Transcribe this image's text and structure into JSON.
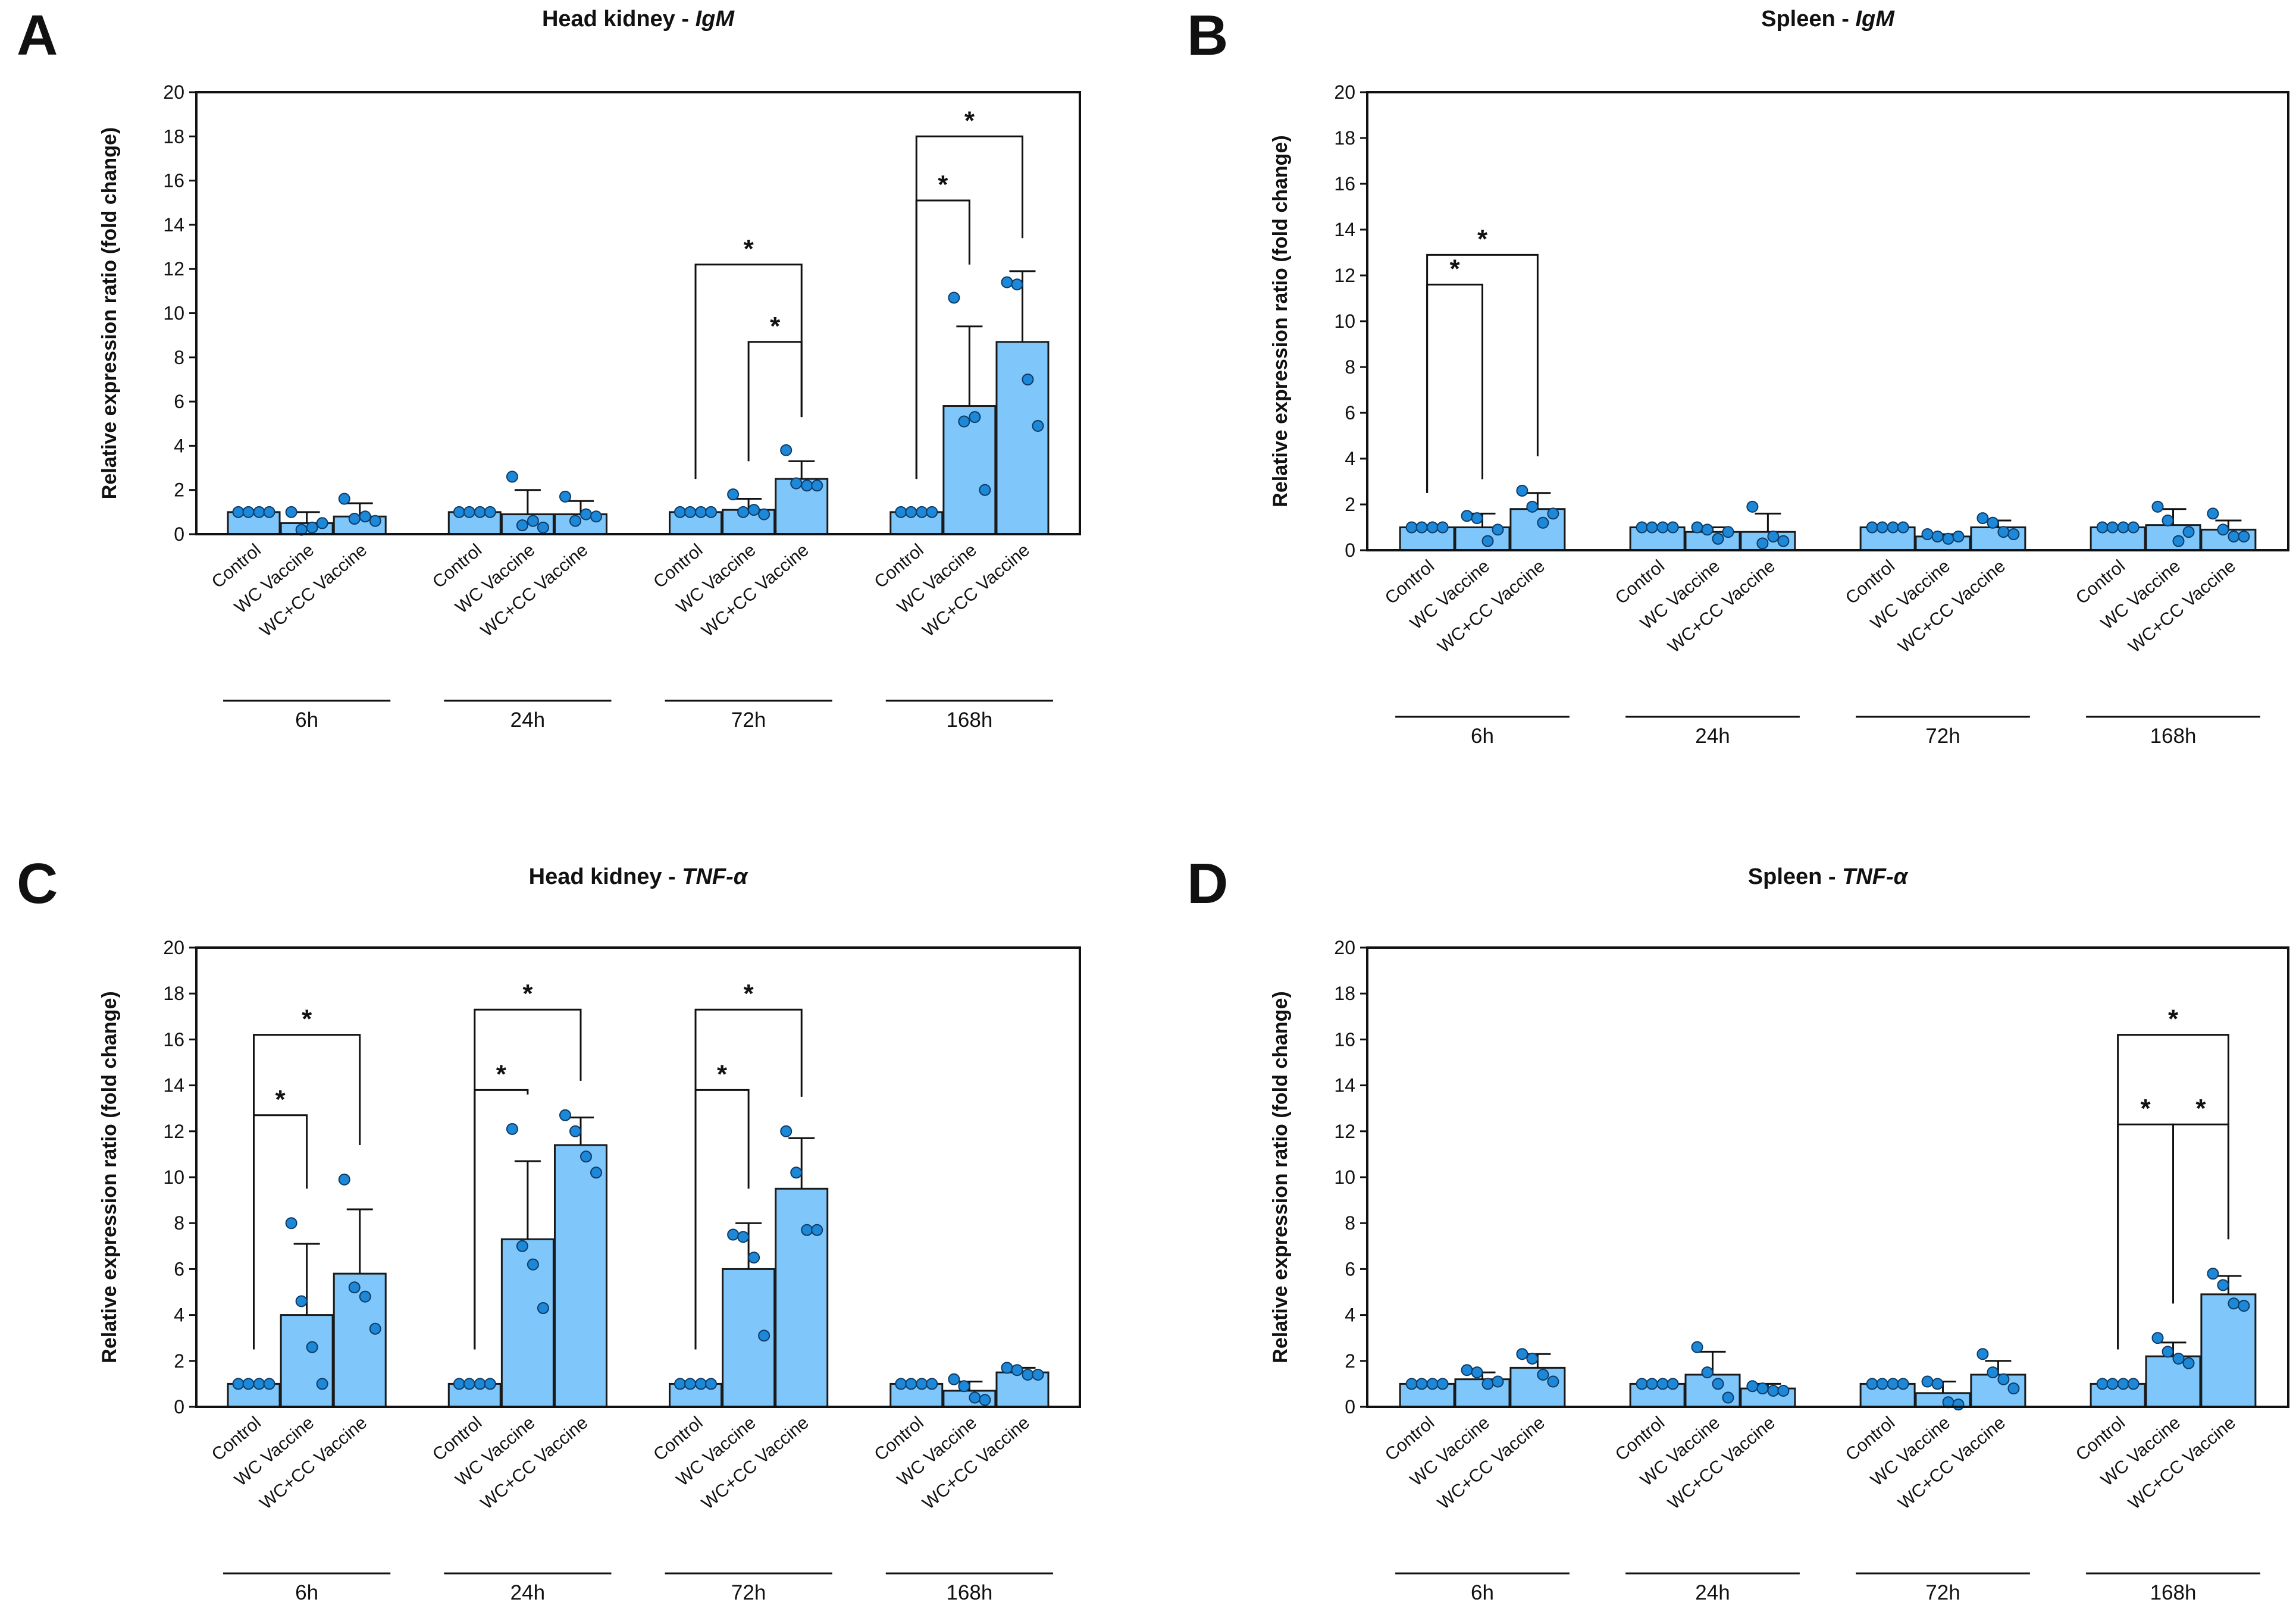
{
  "figure": {
    "bar_color": "#7FC7FA",
    "bar_edge": "#1A1A1A",
    "dot_color": "#1E88D8"
  },
  "chart_data": [
    {
      "panel": "A",
      "type": "bar",
      "title_prefix": "Head kidney - ",
      "title_gene": "IgM",
      "ylabel": "Relative expression ratio (fold change)",
      "ylim": [
        0,
        20
      ],
      "yticks": [
        0,
        2,
        4,
        6,
        8,
        10,
        12,
        14,
        16,
        18,
        20
      ],
      "categories": [
        "Control",
        "WC Vaccine",
        "WC+CC Vaccine"
      ],
      "groups": [
        {
          "label": "6h",
          "bars": [
            {
              "mean": 1.0,
              "sd": 0,
              "points": [
                1,
                1,
                1,
                1
              ]
            },
            {
              "mean": 0.5,
              "sd": 0.5,
              "points": [
                1.0,
                0.2,
                0.3,
                0.5
              ]
            },
            {
              "mean": 0.8,
              "sd": 0.6,
              "points": [
                1.6,
                0.7,
                0.8,
                0.6
              ]
            }
          ]
        },
        {
          "label": "24h",
          "bars": [
            {
              "mean": 1.0,
              "sd": 0,
              "points": [
                1,
                1,
                1,
                1
              ]
            },
            {
              "mean": 0.9,
              "sd": 1.1,
              "points": [
                2.6,
                0.4,
                0.6,
                0.3
              ]
            },
            {
              "mean": 0.9,
              "sd": 0.6,
              "points": [
                1.7,
                0.6,
                0.9,
                0.8
              ]
            }
          ]
        },
        {
          "label": "72h",
          "bars": [
            {
              "mean": 1.0,
              "sd": 0,
              "points": [
                1,
                1,
                1,
                1
              ]
            },
            {
              "mean": 1.1,
              "sd": 0.5,
              "points": [
                1.8,
                1.0,
                1.1,
                0.9
              ]
            },
            {
              "mean": 2.5,
              "sd": 0.8,
              "points": [
                3.8,
                2.3,
                2.2,
                2.2
              ]
            }
          ]
        },
        {
          "label": "168h",
          "bars": [
            {
              "mean": 1.0,
              "sd": 0,
              "points": [
                1,
                1,
                1,
                1
              ]
            },
            {
              "mean": 5.8,
              "sd": 3.6,
              "points": [
                10.7,
                5.1,
                5.3,
                2.0
              ]
            },
            {
              "mean": 8.7,
              "sd": 3.2,
              "points": [
                11.4,
                11.3,
                7.0,
                4.9
              ]
            }
          ]
        }
      ],
      "significance": [
        {
          "group": 2,
          "from": 0,
          "to": 2,
          "y": 12.2,
          "label": "*"
        },
        {
          "group": 2,
          "from": 1,
          "to": 2,
          "y": 8.7,
          "label": "*"
        },
        {
          "group": 3,
          "from": 0,
          "to": 1,
          "y": 15.1,
          "label": "*"
        },
        {
          "group": 3,
          "from": 0,
          "to": 2,
          "y": 18.0,
          "label": "*"
        }
      ]
    },
    {
      "panel": "B",
      "type": "bar",
      "title_prefix": "Spleen - ",
      "title_gene": "IgM",
      "ylabel": "Relative expression ratio (fold change)",
      "ylim": [
        0,
        20
      ],
      "yticks": [
        0,
        2,
        4,
        6,
        8,
        10,
        12,
        14,
        16,
        18,
        20
      ],
      "categories": [
        "Control",
        "WC Vaccine",
        "WC+CC Vaccine"
      ],
      "groups": [
        {
          "label": "6h",
          "bars": [
            {
              "mean": 1.0,
              "sd": 0,
              "points": [
                1,
                1,
                1,
                1
              ]
            },
            {
              "mean": 1.0,
              "sd": 0.6,
              "points": [
                1.5,
                1.4,
                0.4,
                0.9
              ]
            },
            {
              "mean": 1.8,
              "sd": 0.7,
              "points": [
                2.6,
                1.9,
                1.2,
                1.6
              ]
            }
          ]
        },
        {
          "label": "24h",
          "bars": [
            {
              "mean": 1.0,
              "sd": 0,
              "points": [
                1,
                1,
                1,
                1
              ]
            },
            {
              "mean": 0.8,
              "sd": 0.2,
              "points": [
                1.0,
                0.9,
                0.5,
                0.8
              ]
            },
            {
              "mean": 0.8,
              "sd": 0.8,
              "points": [
                1.9,
                0.3,
                0.6,
                0.4
              ]
            }
          ]
        },
        {
          "label": "72h",
          "bars": [
            {
              "mean": 1.0,
              "sd": 0,
              "points": [
                1,
                1,
                1,
                1
              ]
            },
            {
              "mean": 0.6,
              "sd": 0.1,
              "points": [
                0.7,
                0.6,
                0.5,
                0.6
              ]
            },
            {
              "mean": 1.0,
              "sd": 0.3,
              "points": [
                1.4,
                1.2,
                0.8,
                0.7
              ]
            }
          ]
        },
        {
          "label": "168h",
          "bars": [
            {
              "mean": 1.0,
              "sd": 0,
              "points": [
                1,
                1,
                1,
                1
              ]
            },
            {
              "mean": 1.1,
              "sd": 0.7,
              "points": [
                1.9,
                1.3,
                0.4,
                0.8
              ]
            },
            {
              "mean": 0.9,
              "sd": 0.4,
              "points": [
                1.6,
                0.9,
                0.6,
                0.6
              ]
            }
          ]
        }
      ],
      "significance": [
        {
          "group": 0,
          "from": 0,
          "to": 1,
          "y": 11.6,
          "label": "*"
        },
        {
          "group": 0,
          "from": 0,
          "to": 2,
          "y": 12.9,
          "label": "*"
        }
      ]
    },
    {
      "panel": "C",
      "type": "bar",
      "title_prefix": "Head kidney - ",
      "title_gene": "TNF-α",
      "ylabel": "Relative expression ratio (fold change)",
      "ylim": [
        0,
        20
      ],
      "yticks": [
        0,
        2,
        4,
        6,
        8,
        10,
        12,
        14,
        16,
        18,
        20
      ],
      "categories": [
        "Control",
        "WC Vaccine",
        "WC+CC Vaccine"
      ],
      "groups": [
        {
          "label": "6h",
          "bars": [
            {
              "mean": 1.0,
              "sd": 0,
              "points": [
                1,
                1,
                1,
                1
              ]
            },
            {
              "mean": 4.0,
              "sd": 3.1,
              "points": [
                8.0,
                4.6,
                2.6,
                1.0
              ]
            },
            {
              "mean": 5.8,
              "sd": 2.8,
              "points": [
                9.9,
                5.2,
                4.8,
                3.4
              ]
            }
          ]
        },
        {
          "label": "24h",
          "bars": [
            {
              "mean": 1.0,
              "sd": 0,
              "points": [
                1,
                1,
                1,
                1
              ]
            },
            {
              "mean": 7.3,
              "sd": 3.4,
              "points": [
                12.1,
                7.0,
                6.2,
                4.3
              ]
            },
            {
              "mean": 11.4,
              "sd": 1.2,
              "points": [
                12.7,
                12.0,
                10.9,
                10.2
              ]
            }
          ]
        },
        {
          "label": "72h",
          "bars": [
            {
              "mean": 1.0,
              "sd": 0,
              "points": [
                1,
                1,
                1,
                1
              ]
            },
            {
              "mean": 6.0,
              "sd": 2.0,
              "points": [
                7.5,
                7.4,
                6.5,
                3.1
              ]
            },
            {
              "mean": 9.5,
              "sd": 2.2,
              "points": [
                12.0,
                10.2,
                7.7,
                7.7
              ]
            }
          ]
        },
        {
          "label": "168h",
          "bars": [
            {
              "mean": 1.0,
              "sd": 0,
              "points": [
                1,
                1,
                1,
                1
              ]
            },
            {
              "mean": 0.7,
              "sd": 0.4,
              "points": [
                1.2,
                0.9,
                0.4,
                0.3
              ]
            },
            {
              "mean": 1.5,
              "sd": 0.2,
              "points": [
                1.7,
                1.6,
                1.4,
                1.4
              ]
            }
          ]
        }
      ],
      "significance": [
        {
          "group": 0,
          "from": 0,
          "to": 1,
          "y": 12.7,
          "label": "*"
        },
        {
          "group": 0,
          "from": 0,
          "to": 2,
          "y": 16.2,
          "label": "*"
        },
        {
          "group": 1,
          "from": 0,
          "to": 1,
          "y": 13.8,
          "label": "*"
        },
        {
          "group": 1,
          "from": 0,
          "to": 2,
          "y": 17.3,
          "label": "*"
        },
        {
          "group": 2,
          "from": 0,
          "to": 1,
          "y": 13.8,
          "label": "*"
        },
        {
          "group": 2,
          "from": 0,
          "to": 2,
          "y": 17.3,
          "label": "*"
        }
      ]
    },
    {
      "panel": "D",
      "type": "bar",
      "title_prefix": "Spleen - ",
      "title_gene": "TNF-α",
      "ylabel": "Relative expression ratio (fold change)",
      "ylim": [
        0,
        20
      ],
      "yticks": [
        0,
        2,
        4,
        6,
        8,
        10,
        12,
        14,
        16,
        18,
        20
      ],
      "categories": [
        "Control",
        "WC Vaccine",
        "WC+CC Vaccine"
      ],
      "groups": [
        {
          "label": "6h",
          "bars": [
            {
              "mean": 1.0,
              "sd": 0,
              "points": [
                1,
                1,
                1,
                1
              ]
            },
            {
              "mean": 1.2,
              "sd": 0.3,
              "points": [
                1.6,
                1.5,
                1.0,
                1.1
              ]
            },
            {
              "mean": 1.7,
              "sd": 0.6,
              "points": [
                2.3,
                2.1,
                1.4,
                1.1
              ]
            }
          ]
        },
        {
          "label": "24h",
          "bars": [
            {
              "mean": 1.0,
              "sd": 0,
              "points": [
                1,
                1,
                1,
                1
              ]
            },
            {
              "mean": 1.4,
              "sd": 1.0,
              "points": [
                2.6,
                1.5,
                1.0,
                0.4
              ]
            },
            {
              "mean": 0.8,
              "sd": 0.2,
              "points": [
                0.9,
                0.8,
                0.7,
                0.7
              ]
            }
          ]
        },
        {
          "label": "72h",
          "bars": [
            {
              "mean": 1.0,
              "sd": 0,
              "points": [
                1,
                1,
                1,
                1
              ]
            },
            {
              "mean": 0.6,
              "sd": 0.5,
              "points": [
                1.1,
                1.0,
                0.2,
                0.1
              ]
            },
            {
              "mean": 1.4,
              "sd": 0.6,
              "points": [
                2.3,
                1.5,
                1.2,
                0.8
              ]
            }
          ]
        },
        {
          "label": "168h",
          "bars": [
            {
              "mean": 1.0,
              "sd": 0,
              "points": [
                1,
                1,
                1,
                1
              ]
            },
            {
              "mean": 2.2,
              "sd": 0.6,
              "points": [
                3.0,
                2.4,
                2.1,
                1.9
              ]
            },
            {
              "mean": 4.9,
              "sd": 0.8,
              "points": [
                5.8,
                5.3,
                4.5,
                4.4
              ]
            }
          ]
        }
      ],
      "significance": [
        {
          "group": 3,
          "from": 0,
          "to": 1,
          "y": 12.3,
          "label": "*"
        },
        {
          "group": 3,
          "from": 1,
          "to": 2,
          "y": 12.3,
          "label": "*"
        },
        {
          "group": 3,
          "from": 0,
          "to": 2,
          "y": 16.2,
          "label": "*"
        }
      ]
    }
  ]
}
